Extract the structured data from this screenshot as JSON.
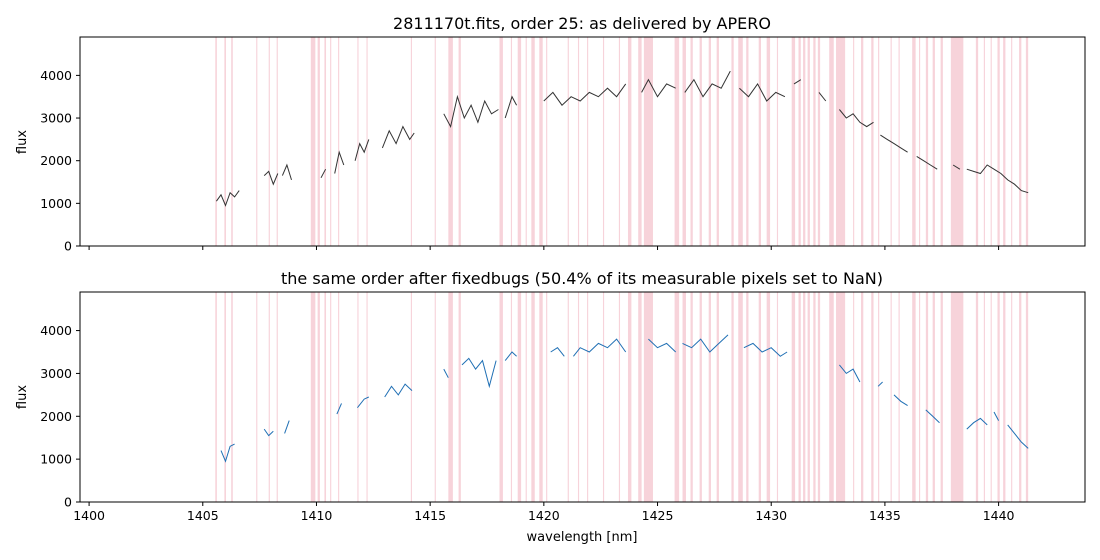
{
  "chart_data": [
    {
      "type": "line",
      "title": "2811170t.fits, order 25: as delivered by APERO",
      "xlabel": "",
      "ylabel": "flux",
      "xlim": [
        1399.6,
        1443.8
      ],
      "ylim": [
        0,
        4900
      ],
      "yticks": [
        0,
        1000,
        2000,
        3000,
        4000
      ],
      "xticks": [
        1400,
        1405,
        1410,
        1415,
        1420,
        1425,
        1430,
        1435,
        1440
      ],
      "show_xtick_labels": false,
      "line_color": "#333333",
      "grid": false,
      "series": [
        {
          "segments": [
            {
              "x": [
                1405.6,
                1405.8,
                1406.0,
                1406.2,
                1406.4,
                1406.6
              ],
              "y": [
                1050,
                1200,
                950,
                1250,
                1150,
                1300
              ]
            },
            {
              "x": [
                1407.7,
                1407.9,
                1408.1,
                1408.3
              ],
              "y": [
                1650,
                1750,
                1450,
                1700
              ]
            },
            {
              "x": [
                1408.5,
                1408.7,
                1408.9
              ],
              "y": [
                1650,
                1900,
                1550
              ]
            },
            {
              "x": [
                1410.2,
                1410.4
              ],
              "y": [
                1600,
                1800
              ]
            },
            {
              "x": [
                1410.8,
                1411.0,
                1411.2
              ],
              "y": [
                1700,
                2200,
                1900
              ]
            },
            {
              "x": [
                1411.7,
                1411.9,
                1412.1,
                1412.3
              ],
              "y": [
                2000,
                2400,
                2200,
                2500
              ]
            },
            {
              "x": [
                1412.9,
                1413.2,
                1413.5,
                1413.8,
                1414.1,
                1414.3
              ],
              "y": [
                2300,
                2700,
                2400,
                2800,
                2500,
                2650
              ]
            },
            {
              "x": [
                1415.6,
                1415.9,
                1416.2,
                1416.5,
                1416.8,
                1417.1,
                1417.4,
                1417.7,
                1418.0
              ],
              "y": [
                3100,
                2800,
                3500,
                3000,
                3300,
                2900,
                3400,
                3100,
                3200
              ]
            },
            {
              "x": [
                1418.3,
                1418.6,
                1418.8
              ],
              "y": [
                3000,
                3500,
                3300
              ]
            },
            {
              "x": [
                1420.0,
                1420.4,
                1420.8,
                1421.2,
                1421.6,
                1422.0,
                1422.4,
                1422.8,
                1423.2,
                1423.6
              ],
              "y": [
                3400,
                3600,
                3300,
                3500,
                3400,
                3600,
                3500,
                3700,
                3500,
                3800
              ]
            },
            {
              "x": [
                1424.3,
                1424.6,
                1425.0,
                1425.4,
                1425.8
              ],
              "y": [
                3600,
                3900,
                3500,
                3800,
                3700
              ]
            },
            {
              "x": [
                1426.2,
                1426.6,
                1427.0,
                1427.4,
                1427.8,
                1428.2
              ],
              "y": [
                3600,
                3900,
                3500,
                3800,
                3700,
                4100
              ]
            },
            {
              "x": [
                1428.6,
                1429.0,
                1429.4,
                1429.8,
                1430.2,
                1430.6
              ],
              "y": [
                3700,
                3500,
                3800,
                3400,
                3600,
                3500
              ]
            },
            {
              "x": [
                1431.0,
                1431.3
              ],
              "y": [
                3800,
                3900
              ]
            },
            {
              "x": [
                1432.1,
                1432.4
              ],
              "y": [
                3600,
                3400
              ]
            },
            {
              "x": [
                1433.0,
                1433.3,
                1433.6,
                1433.9,
                1434.2,
                1434.5
              ],
              "y": [
                3200,
                3000,
                3100,
                2900,
                2800,
                2900
              ]
            },
            {
              "x": [
                1434.8,
                1435.1,
                1435.4,
                1435.7,
                1436.0
              ],
              "y": [
                2600,
                2500,
                2400,
                2300,
                2200
              ]
            },
            {
              "x": [
                1436.4,
                1436.7,
                1437.0,
                1437.3
              ],
              "y": [
                2100,
                2000,
                1900,
                1800
              ]
            },
            {
              "x": [
                1438.0,
                1438.3
              ],
              "y": [
                1900,
                1800
              ]
            },
            {
              "x": [
                1438.6,
                1438.9,
                1439.2,
                1439.5,
                1439.8,
                1440.1,
                1440.4,
                1440.7,
                1441.0,
                1441.3
              ],
              "y": [
                1800,
                1750,
                1700,
                1900,
                1800,
                1700,
                1550,
                1450,
                1300,
                1250
              ]
            }
          ]
        }
      ]
    },
    {
      "type": "line",
      "title": "the same order after fixedbugs (50.4% of its measurable pixels set to NaN)",
      "xlabel": "wavelength [nm]",
      "ylabel": "flux",
      "xlim": [
        1399.6,
        1443.8
      ],
      "ylim": [
        0,
        4900
      ],
      "yticks": [
        0,
        1000,
        2000,
        3000,
        4000
      ],
      "xticks": [
        1400,
        1405,
        1410,
        1415,
        1420,
        1425,
        1430,
        1435,
        1440
      ],
      "show_xtick_labels": true,
      "line_color": "#1f6fb4",
      "grid": false,
      "series": [
        {
          "segments": [
            {
              "x": [
                1405.8,
                1406.0,
                1406.2,
                1406.4
              ],
              "y": [
                1200,
                950,
                1300,
                1350
              ]
            },
            {
              "x": [
                1407.7,
                1407.9,
                1408.1
              ],
              "y": [
                1700,
                1550,
                1650
              ]
            },
            {
              "x": [
                1408.6,
                1408.8
              ],
              "y": [
                1600,
                1900
              ]
            },
            {
              "x": [
                1410.9,
                1411.1
              ],
              "y": [
                2050,
                2300
              ]
            },
            {
              "x": [
                1411.8,
                1412.1,
                1412.3
              ],
              "y": [
                2200,
                2400,
                2450
              ]
            },
            {
              "x": [
                1413.0,
                1413.3,
                1413.6,
                1413.9,
                1414.2
              ],
              "y": [
                2450,
                2700,
                2500,
                2750,
                2600
              ]
            },
            {
              "x": [
                1415.6,
                1415.8
              ],
              "y": [
                3100,
                2900
              ]
            },
            {
              "x": [
                1416.4,
                1416.7,
                1417.0,
                1417.3,
                1417.6,
                1417.9
              ],
              "y": [
                3200,
                3350,
                3100,
                3300,
                2700,
                3300
              ]
            },
            {
              "x": [
                1418.3,
                1418.6,
                1418.8
              ],
              "y": [
                3300,
                3500,
                3400
              ]
            },
            {
              "x": [
                1420.3,
                1420.6,
                1420.9
              ],
              "y": [
                3500,
                3600,
                3400
              ]
            },
            {
              "x": [
                1421.3,
                1421.6,
                1422.0,
                1422.4,
                1422.8,
                1423.2,
                1423.6
              ],
              "y": [
                3400,
                3600,
                3500,
                3700,
                3600,
                3800,
                3500
              ]
            },
            {
              "x": [
                1424.6,
                1425.0,
                1425.4,
                1425.8
              ],
              "y": [
                3800,
                3600,
                3700,
                3500
              ]
            },
            {
              "x": [
                1426.1,
                1426.5,
                1426.9,
                1427.3,
                1427.7,
                1428.1
              ],
              "y": [
                3700,
                3600,
                3800,
                3500,
                3700,
                3900
              ]
            },
            {
              "x": [
                1428.8,
                1429.2,
                1429.6,
                1430.0,
                1430.4,
                1430.7
              ],
              "y": [
                3600,
                3700,
                3500,
                3600,
                3400,
                3500
              ]
            },
            {
              "x": [
                1433.0,
                1433.3,
                1433.6,
                1433.9
              ],
              "y": [
                3200,
                3000,
                3100,
                2800
              ]
            },
            {
              "x": [
                1434.7,
                1434.9
              ],
              "y": [
                2700,
                2800
              ]
            },
            {
              "x": [
                1435.4,
                1435.7,
                1436.0
              ],
              "y": [
                2500,
                2350,
                2250
              ]
            },
            {
              "x": [
                1436.8,
                1437.1,
                1437.4
              ],
              "y": [
                2150,
                2000,
                1850
              ]
            },
            {
              "x": [
                1438.6,
                1438.9,
                1439.2,
                1439.5
              ],
              "y": [
                1700,
                1850,
                1950,
                1800
              ]
            },
            {
              "x": [
                1439.8,
                1440.0
              ],
              "y": [
                2100,
                1900
              ]
            },
            {
              "x": [
                1440.4,
                1440.7,
                1441.0,
                1441.3
              ],
              "y": [
                1800,
                1600,
                1400,
                1250
              ]
            }
          ]
        }
      ]
    }
  ],
  "bad_bands": [
    [
      1405.55,
      1405.62
    ],
    [
      1405.95,
      1406.02
    ],
    [
      1406.25,
      1406.32
    ],
    [
      1407.35,
      1407.4
    ],
    [
      1407.9,
      1407.95
    ],
    [
      1408.25,
      1408.3
    ],
    [
      1409.75,
      1409.95
    ],
    [
      1410.05,
      1410.15
    ],
    [
      1410.35,
      1410.42
    ],
    [
      1410.6,
      1410.65
    ],
    [
      1410.95,
      1411.0
    ],
    [
      1411.8,
      1411.85
    ],
    [
      1412.2,
      1412.25
    ],
    [
      1414.15,
      1414.2
    ],
    [
      1415.2,
      1415.25
    ],
    [
      1415.8,
      1416.0
    ],
    [
      1416.25,
      1416.35
    ],
    [
      1418.05,
      1418.2
    ],
    [
      1418.55,
      1418.6
    ],
    [
      1418.85,
      1419.0
    ],
    [
      1419.2,
      1419.25
    ],
    [
      1419.45,
      1419.6
    ],
    [
      1419.8,
      1419.95
    ],
    [
      1420.1,
      1420.15
    ],
    [
      1421.05,
      1421.1
    ],
    [
      1421.5,
      1421.55
    ],
    [
      1421.9,
      1421.95
    ],
    [
      1422.6,
      1422.65
    ],
    [
      1423.3,
      1423.35
    ],
    [
      1423.7,
      1423.85
    ],
    [
      1424.15,
      1424.3
    ],
    [
      1424.4,
      1424.8
    ],
    [
      1425.75,
      1425.95
    ],
    [
      1426.1,
      1426.25
    ],
    [
      1426.45,
      1426.55
    ],
    [
      1426.85,
      1426.95
    ],
    [
      1427.25,
      1427.35
    ],
    [
      1427.6,
      1427.7
    ],
    [
      1428.25,
      1428.35
    ],
    [
      1428.55,
      1428.75
    ],
    [
      1428.9,
      1429.0
    ],
    [
      1429.45,
      1429.55
    ],
    [
      1429.8,
      1429.95
    ],
    [
      1430.25,
      1430.3
    ],
    [
      1430.9,
      1431.05
    ],
    [
      1431.2,
      1431.3
    ],
    [
      1431.4,
      1431.5
    ],
    [
      1431.6,
      1431.7
    ],
    [
      1431.85,
      1431.95
    ],
    [
      1432.05,
      1432.15
    ],
    [
      1432.55,
      1432.75
    ],
    [
      1432.85,
      1433.25
    ],
    [
      1433.6,
      1433.65
    ],
    [
      1433.95,
      1434.05
    ],
    [
      1434.4,
      1434.5
    ],
    [
      1434.7,
      1434.75
    ],
    [
      1435.25,
      1435.3
    ],
    [
      1435.6,
      1435.65
    ],
    [
      1436.2,
      1436.35
    ],
    [
      1436.5,
      1436.55
    ],
    [
      1436.8,
      1436.9
    ],
    [
      1437.1,
      1437.2
    ],
    [
      1437.45,
      1437.55
    ],
    [
      1437.9,
      1438.45
    ],
    [
      1439.0,
      1439.1
    ],
    [
      1439.35,
      1439.4
    ],
    [
      1439.65,
      1439.7
    ],
    [
      1439.95,
      1440.05
    ],
    [
      1440.2,
      1440.3
    ],
    [
      1440.55,
      1440.6
    ],
    [
      1440.9,
      1441.0
    ],
    [
      1441.2,
      1441.3
    ]
  ],
  "band_color": "#f7d3da"
}
